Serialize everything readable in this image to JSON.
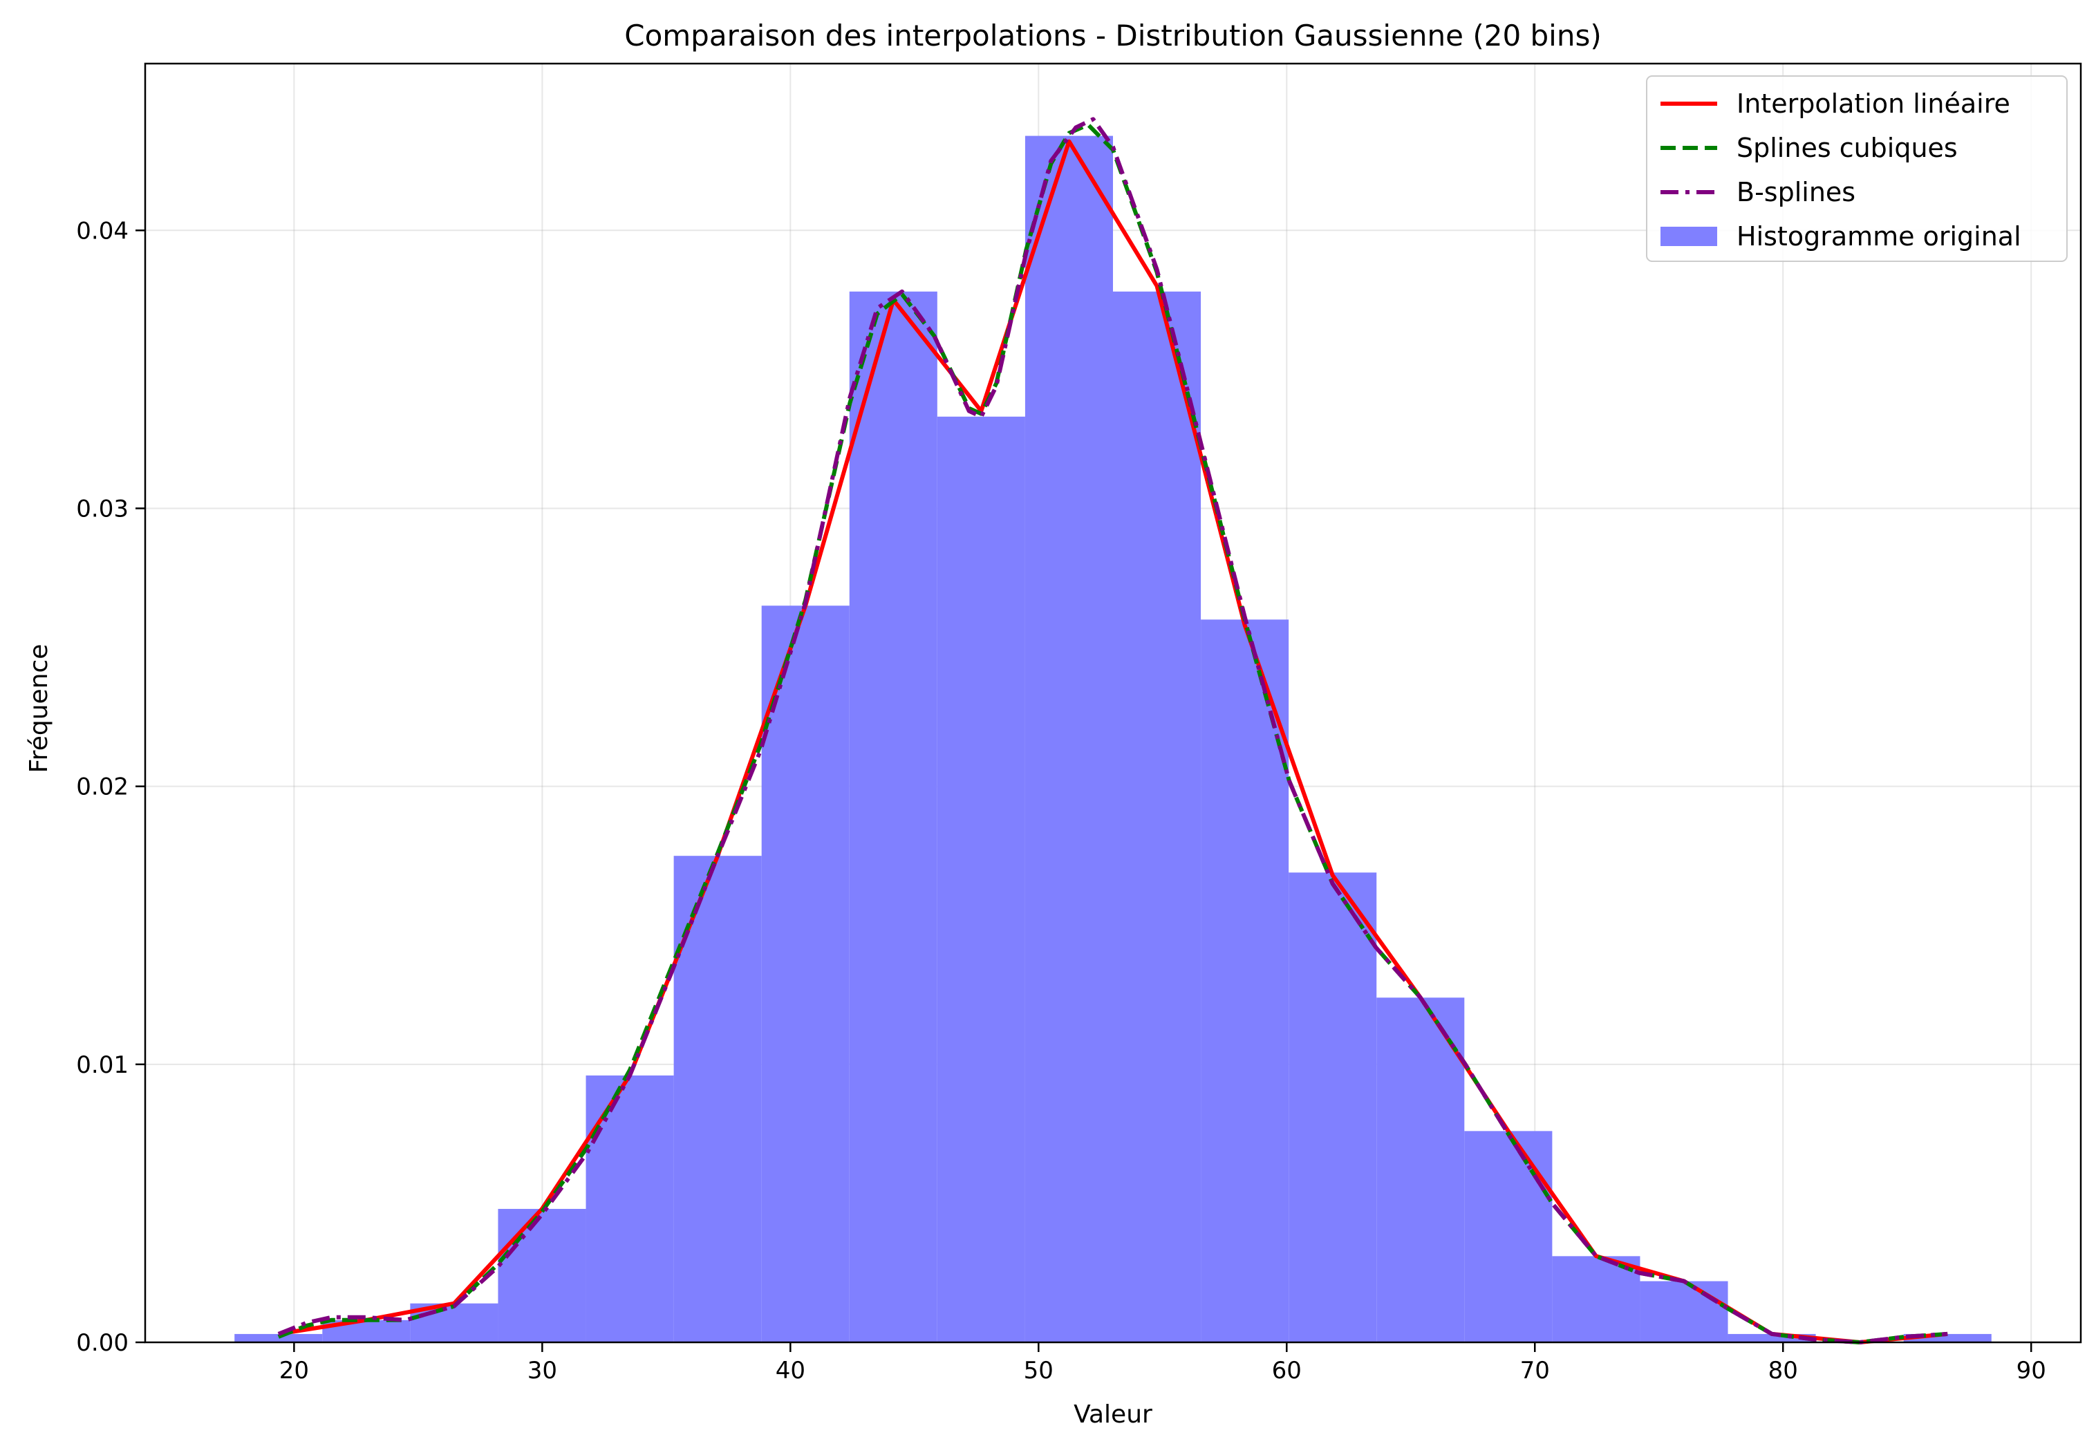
{
  "chart_data": {
    "type": "histogram",
    "title": "Comparaison des interpolations - Distribution Gaussienne (20 bins)",
    "xlabel": "Valeur",
    "ylabel": "Fréquence",
    "xlim": [
      14,
      92
    ],
    "ylim": [
      0,
      0.046
    ],
    "xticks": [
      20,
      30,
      40,
      50,
      60,
      70,
      80,
      90
    ],
    "yticks": [
      0.0,
      0.01,
      0.02,
      0.03,
      0.04
    ],
    "ytick_labels": [
      "0.00",
      "0.01",
      "0.02",
      "0.03",
      "0.04"
    ],
    "grid": true,
    "legend_position": "top-right",
    "histogram": {
      "name": "Histogramme original",
      "color": "#8080ff",
      "bin_edges": [
        17.6,
        21.14,
        24.68,
        28.22,
        31.76,
        35.3,
        38.84,
        42.38,
        45.92,
        49.46,
        53.0,
        56.54,
        60.08,
        63.62,
        67.16,
        70.7,
        74.24,
        77.78,
        81.32,
        84.86,
        88.4
      ],
      "values": [
        0.0003,
        0.0008,
        0.0014,
        0.0048,
        0.0096,
        0.0175,
        0.0265,
        0.0378,
        0.0333,
        0.0434,
        0.0378,
        0.026,
        0.0169,
        0.0124,
        0.0076,
        0.0031,
        0.0022,
        0.0003,
        0.0,
        0.0003
      ]
    },
    "series": [
      {
        "name": "Interpolation linéaire",
        "color": "#ff0000",
        "style": "solid",
        "x": [
          19.37,
          22.91,
          26.45,
          29.99,
          33.53,
          37.07,
          40.61,
          44.15,
          47.69,
          51.23,
          54.77,
          58.31,
          61.85,
          65.39,
          68.93,
          72.47,
          76.01,
          79.55,
          83.09,
          86.63
        ],
        "y": [
          0.0003,
          0.0008,
          0.0014,
          0.0048,
          0.0096,
          0.0175,
          0.0265,
          0.0375,
          0.0335,
          0.0432,
          0.038,
          0.0258,
          0.0168,
          0.0124,
          0.0076,
          0.0031,
          0.0022,
          0.0003,
          0.0,
          0.0003
        ]
      },
      {
        "name": "Splines cubiques",
        "color": "#008000",
        "style": "dashed",
        "x": [
          19.37,
          20.5,
          21.5,
          22.91,
          24.5,
          26.45,
          28.2,
          29.99,
          31.8,
          33.53,
          35.3,
          37.07,
          38.8,
          40.61,
          42.4,
          43.5,
          44.5,
          45.8,
          47.2,
          47.69,
          48.3,
          49.5,
          50.5,
          51.23,
          52.0,
          53.0,
          54.77,
          56.5,
          58.31,
          60.1,
          61.85,
          63.6,
          65.39,
          67.2,
          68.93,
          70.7,
          72.47,
          74.2,
          76.01,
          77.8,
          79.55,
          81.3,
          83.09,
          84.9,
          86.63
        ],
        "y": [
          0.0002,
          0.0006,
          0.0008,
          0.0008,
          0.0008,
          0.0013,
          0.0028,
          0.0047,
          0.007,
          0.0098,
          0.0137,
          0.0176,
          0.0215,
          0.0267,
          0.0338,
          0.037,
          0.0377,
          0.0362,
          0.0336,
          0.0334,
          0.0345,
          0.0393,
          0.0424,
          0.0435,
          0.0438,
          0.0429,
          0.0385,
          0.0324,
          0.026,
          0.0202,
          0.0165,
          0.0142,
          0.0124,
          0.01,
          0.0075,
          0.005,
          0.0031,
          0.0025,
          0.0022,
          0.0012,
          0.0003,
          0.0001,
          0.0,
          0.0002,
          0.0003
        ]
      },
      {
        "name": "B-splines",
        "color": "#800080",
        "style": "dashdot",
        "x": [
          19.37,
          20.5,
          21.5,
          22.91,
          24.5,
          26.45,
          28.2,
          29.99,
          31.8,
          33.53,
          35.3,
          37.07,
          38.8,
          40.61,
          42.4,
          43.5,
          44.5,
          45.8,
          47.2,
          47.69,
          48.3,
          49.5,
          50.5,
          51.5,
          52.2,
          53.0,
          54.77,
          56.5,
          58.31,
          60.1,
          61.85,
          63.6,
          65.39,
          67.2,
          68.93,
          70.7,
          72.47,
          74.2,
          76.01,
          77.8,
          79.55,
          81.3,
          83.09,
          84.9,
          86.63
        ],
        "y": [
          0.0003,
          0.0007,
          0.0009,
          0.0009,
          0.0008,
          0.0013,
          0.0027,
          0.0046,
          0.0068,
          0.0096,
          0.0135,
          0.0175,
          0.0213,
          0.0266,
          0.034,
          0.0372,
          0.0378,
          0.0362,
          0.0335,
          0.0333,
          0.0344,
          0.0392,
          0.0425,
          0.0437,
          0.044,
          0.043,
          0.0386,
          0.0325,
          0.0261,
          0.0202,
          0.0165,
          0.0142,
          0.0124,
          0.01,
          0.0075,
          0.005,
          0.0031,
          0.0025,
          0.0022,
          0.0012,
          0.0003,
          0.0001,
          0.0,
          0.0002,
          0.0003
        ]
      }
    ],
    "legend_order": [
      "Interpolation linéaire",
      "Splines cubiques",
      "B-splines",
      "Histogramme original"
    ]
  }
}
